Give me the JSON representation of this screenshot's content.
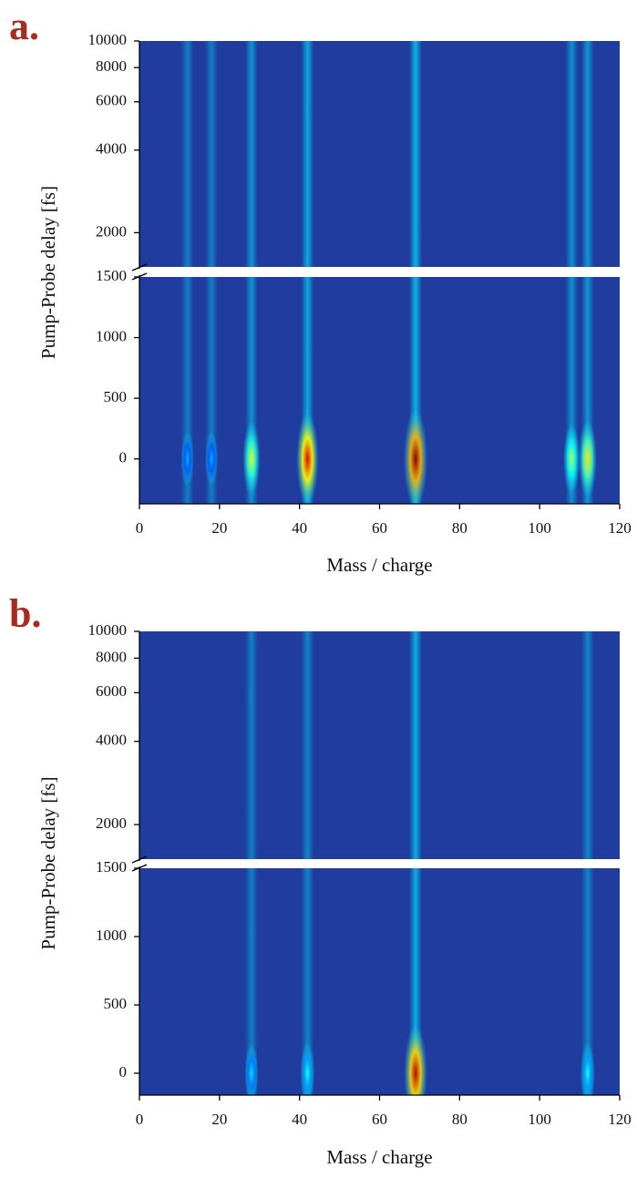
{
  "chart_data": [
    {
      "type": "heatmap",
      "panel_label": "a.",
      "xlabel": "Mass / charge",
      "ylabel": "Pump-Probe delay [fs]",
      "xlim": [
        0,
        120
      ],
      "xticks": [
        0,
        20,
        40,
        60,
        80,
        100,
        120
      ],
      "ylim": [
        -370,
        1500
      ],
      "yticks": [
        0,
        500,
        1000,
        1500
      ],
      "y_upper_lim": [
        1500,
        10000
      ],
      "y_upper_ticks": [
        2000,
        4000,
        6000,
        8000,
        10000
      ],
      "y_upper_scale": "log",
      "peak_delay": 0,
      "x": [
        12,
        18,
        28,
        42,
        69,
        108,
        112
      ],
      "values": [
        0.3,
        0.3,
        0.6,
        0.9,
        1.0,
        0.55,
        0.65
      ]
    },
    {
      "type": "heatmap",
      "panel_label": "b.",
      "xlabel": "Mass / charge",
      "ylabel": "Pump-Probe delay [fs]",
      "xlim": [
        0,
        120
      ],
      "xticks": [
        0,
        20,
        40,
        60,
        80,
        100,
        120
      ],
      "ylim": [
        -160,
        1500
      ],
      "yticks": [
        0,
        500,
        1000,
        1500
      ],
      "y_upper_lim": [
        1500,
        10000
      ],
      "y_upper_ticks": [
        2000,
        4000,
        6000,
        8000,
        10000
      ],
      "y_upper_scale": "log",
      "peak_delay": 0,
      "x": [
        28,
        42,
        69,
        112
      ],
      "values": [
        0.35,
        0.4,
        0.95,
        0.4
      ]
    }
  ]
}
